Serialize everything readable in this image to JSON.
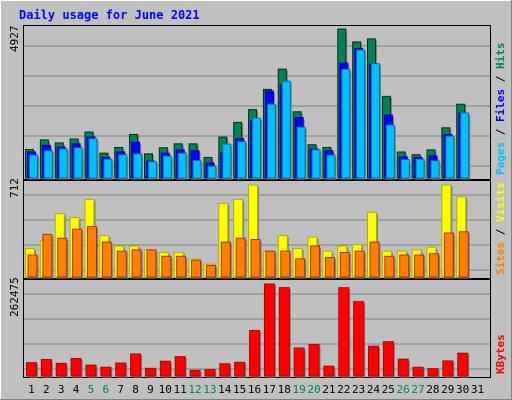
{
  "chart_data": [
    {
      "type": "bar",
      "title": "Daily usage for June 2021",
      "panel": "hits-files-pages",
      "ymax_label": "4927",
      "ylim": [
        0,
        4927
      ],
      "categories": [
        "1",
        "2",
        "3",
        "4",
        "5",
        "6",
        "7",
        "8",
        "9",
        "10",
        "11",
        "12",
        "13",
        "14",
        "15",
        "16",
        "17",
        "18",
        "19",
        "20",
        "21",
        "22",
        "23",
        "24",
        "25",
        "26",
        "27",
        "28",
        "29",
        "30",
        "31"
      ],
      "weekend_days": [
        "5",
        "6",
        "12",
        "13",
        "19",
        "20",
        "26",
        "27"
      ],
      "legend": [
        {
          "label": "Hits",
          "color": "#00805C"
        },
        {
          "label": "Files",
          "color": "#0000FF"
        },
        {
          "label": "Pages",
          "color": "#00C0FF"
        }
      ],
      "series": [
        {
          "name": "Hits",
          "color": "#00805C",
          "values": [
            940,
            1260,
            1160,
            1290,
            1520,
            820,
            1010,
            1440,
            800,
            1000,
            1130,
            1130,
            680,
            1350,
            1840,
            2260,
            2930,
            3600,
            2190,
            1100,
            1010,
            4927,
            4500,
            4600,
            2700,
            860,
            770,
            930,
            1660,
            2440,
            0
          ]
        },
        {
          "name": "Files",
          "color": "#0000FF",
          "values": [
            860,
            1080,
            1020,
            1130,
            1360,
            680,
            860,
            1180,
            560,
            820,
            930,
            900,
            500,
            830,
            1300,
            1900,
            2880,
            3080,
            2000,
            960,
            900,
            3800,
            4280,
            3760,
            2080,
            700,
            680,
            730,
            1440,
            2150,
            0
          ]
        },
        {
          "name": "Pages",
          "color": "#00C0FF",
          "values": [
            760,
            900,
            960,
            1000,
            1300,
            620,
            770,
            800,
            540,
            720,
            820,
            580,
            390,
            1120,
            1200,
            1980,
            2440,
            3200,
            1680,
            930,
            760,
            3590,
            4230,
            3780,
            1750,
            610,
            620,
            570,
            1380,
            2150,
            0
          ]
        }
      ]
    },
    {
      "type": "bar",
      "panel": "visits-sites",
      "ymax_label": "712",
      "ylim": [
        0,
        712
      ],
      "categories": [
        "1",
        "2",
        "3",
        "4",
        "5",
        "6",
        "7",
        "8",
        "9",
        "10",
        "11",
        "12",
        "13",
        "14",
        "15",
        "16",
        "17",
        "18",
        "19",
        "20",
        "21",
        "22",
        "23",
        "24",
        "25",
        "26",
        "27",
        "28",
        "29",
        "30",
        "31"
      ],
      "legend": [
        {
          "label": "Visits",
          "color": "#FFFF00"
        },
        {
          "label": "Sites",
          "color": "#FF8000"
        }
      ],
      "series": [
        {
          "name": "Visits",
          "color": "#FFFF00",
          "values": [
            220,
            280,
            490,
            460,
            600,
            320,
            240,
            240,
            210,
            190,
            190,
            140,
            100,
            570,
            600,
            712,
            200,
            320,
            220,
            310,
            200,
            240,
            250,
            500,
            200,
            200,
            210,
            230,
            712,
            620,
            0
          ]
        },
        {
          "name": "Sites",
          "color": "#FF8000",
          "values": [
            170,
            330,
            300,
            370,
            390,
            270,
            200,
            210,
            210,
            160,
            160,
            130,
            90,
            270,
            300,
            290,
            200,
            200,
            140,
            240,
            150,
            190,
            200,
            270,
            160,
            170,
            170,
            180,
            340,
            350,
            0
          ]
        }
      ]
    },
    {
      "type": "bar",
      "panel": "kbytes",
      "ymax_label": "262475",
      "ylim": [
        0,
        262475
      ],
      "categories": [
        "1",
        "2",
        "3",
        "4",
        "5",
        "6",
        "7",
        "8",
        "9",
        "10",
        "11",
        "12",
        "13",
        "14",
        "15",
        "16",
        "17",
        "18",
        "19",
        "20",
        "21",
        "22",
        "23",
        "24",
        "25",
        "26",
        "27",
        "28",
        "29",
        "30",
        "31"
      ],
      "legend": [
        {
          "label": "KBytes",
          "color": "#FF0000"
        }
      ],
      "series": [
        {
          "name": "KBytes",
          "color": "#FF0000",
          "values": [
            38000,
            47000,
            36000,
            50000,
            31000,
            25000,
            37000,
            63000,
            22000,
            42000,
            55000,
            16000,
            18000,
            35000,
            39000,
            130000,
            262475,
            252000,
            80000,
            90000,
            28000,
            252000,
            212000,
            85000,
            98000,
            48000,
            25000,
            21000,
            43000,
            65000,
            0
          ]
        }
      ]
    }
  ]
}
